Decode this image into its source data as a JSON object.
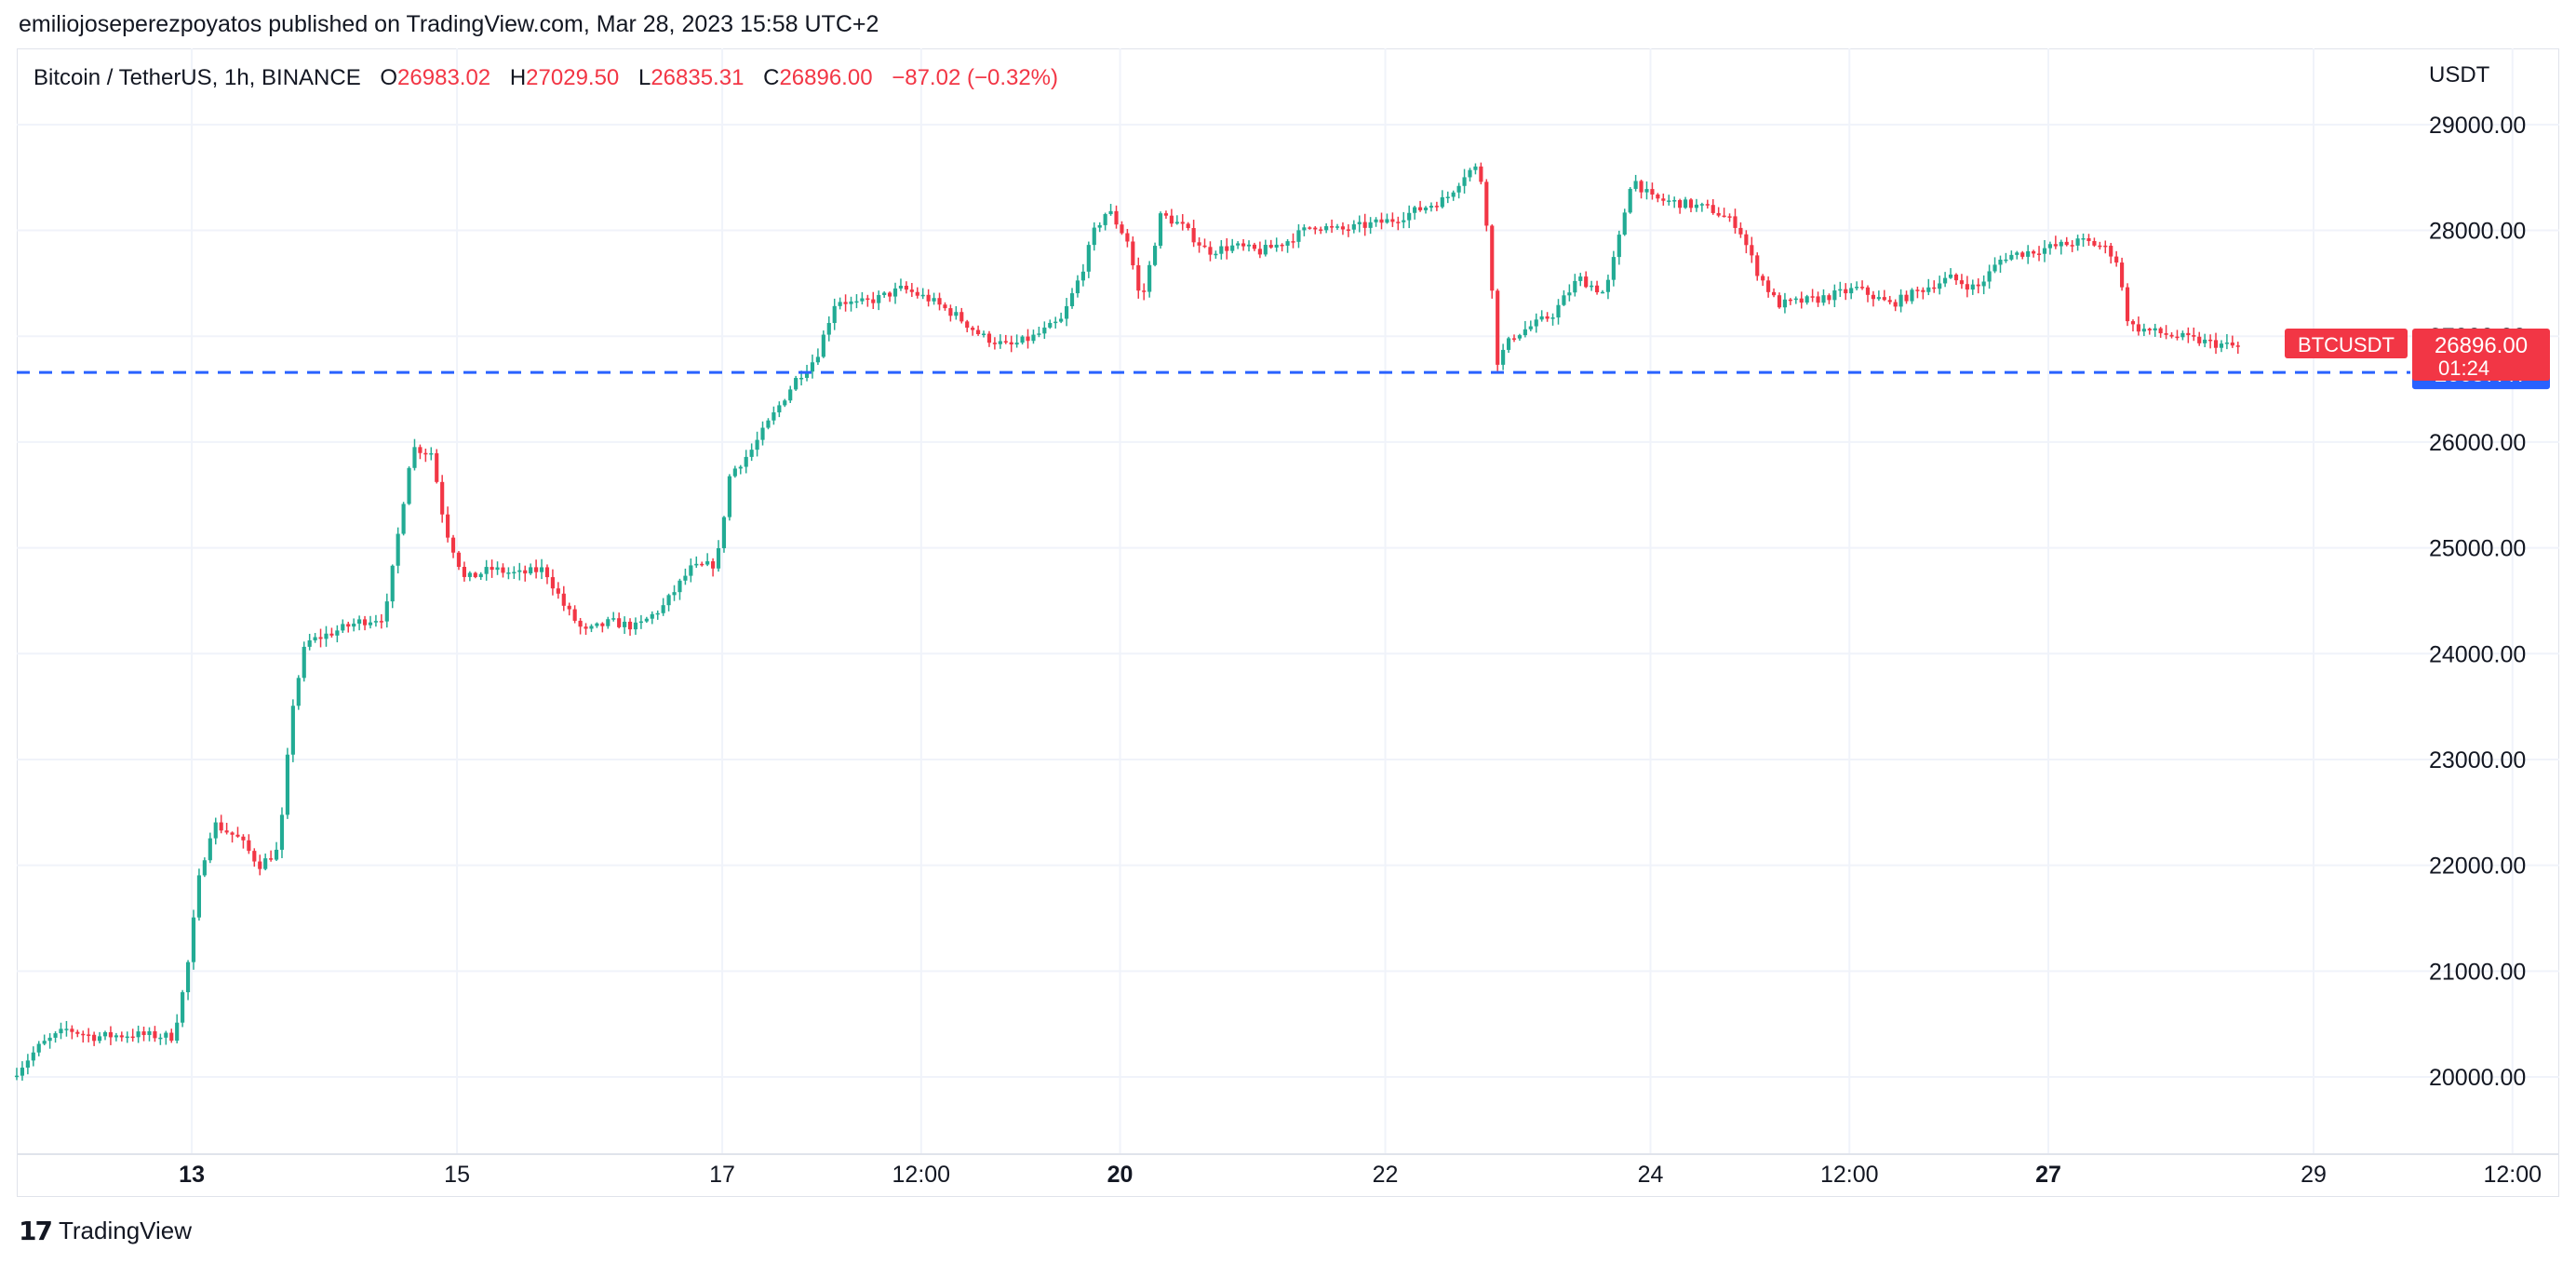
{
  "header": {
    "published_line": "emiliojoseperezpoyatos published on TradingView.com, Mar 28, 2023 15:58 UTC+2"
  },
  "legend": {
    "symbol": "Bitcoin / TetherUS, 1h, BINANCE",
    "open_label": "O",
    "open": "26983.02",
    "high_label": "H",
    "high": "27029.50",
    "low_label": "L",
    "low": "26835.31",
    "close_label": "C",
    "close": "26896.00",
    "change": "−87.02 (−0.32%)"
  },
  "footer": {
    "brand": "TradingView",
    "logo_icon": "tradingview-logo-icon"
  },
  "colors": {
    "up": "#22ab94",
    "down": "#f23645",
    "line": "#2962ff",
    "grid": "#f0f3fa"
  },
  "chart_data": {
    "type": "candlestick",
    "ylabel": "USDT",
    "ylim": [
      19270,
      29720
    ],
    "y_ticks": [
      20000,
      21000,
      22000,
      23000,
      24000,
      25000,
      26000,
      27000,
      28000,
      29000
    ],
    "y_tick_labels": [
      "20000.00",
      "21000.00",
      "22000.00",
      "23000.00",
      "24000.00",
      "25000.00",
      "26000.00",
      "27000.00",
      "28000.00",
      "29000.00"
    ],
    "xlim": [
      11.68,
      29.8
    ],
    "x_ticks": [
      {
        "x": 13,
        "label": "13",
        "bold": true
      },
      {
        "x": 15,
        "label": "15",
        "bold": false
      },
      {
        "x": 17,
        "label": "17",
        "bold": false
      },
      {
        "x": 18.5,
        "label": "12:00",
        "bold": false
      },
      {
        "x": 20,
        "label": "20",
        "bold": true
      },
      {
        "x": 22,
        "label": "22",
        "bold": false
      },
      {
        "x": 24,
        "label": "24",
        "bold": false
      },
      {
        "x": 25.5,
        "label": "12:00",
        "bold": false
      },
      {
        "x": 27,
        "label": "27",
        "bold": true
      },
      {
        "x": 29,
        "label": "29",
        "bold": false
      },
      {
        "x": 30.5,
        "label": "12:00",
        "bold": false
      }
    ],
    "price_line": {
      "value": 26657.47,
      "label": "26657.47",
      "style": "dashed"
    },
    "last_price": {
      "symbol": "BTCUSDT",
      "value": 26896.0,
      "label": "26896.00",
      "countdown": "01:24"
    },
    "path": [
      [
        11.68,
        20000
      ],
      [
        11.9,
        20300
      ],
      [
        12.1,
        20450
      ],
      [
        12.3,
        20380
      ],
      [
        12.6,
        20400
      ],
      [
        12.9,
        20380
      ],
      [
        13.0,
        20950
      ],
      [
        13.1,
        21900
      ],
      [
        13.2,
        22400
      ],
      [
        13.4,
        22250
      ],
      [
        13.55,
        22000
      ],
      [
        13.7,
        22150
      ],
      [
        13.8,
        23500
      ],
      [
        13.9,
        24100
      ],
      [
        14.1,
        24200
      ],
      [
        14.3,
        24300
      ],
      [
        14.5,
        24350
      ],
      [
        14.7,
        25950
      ],
      [
        14.85,
        25900
      ],
      [
        14.95,
        25200
      ],
      [
        15.1,
        24700
      ],
      [
        15.3,
        24800
      ],
      [
        15.5,
        24750
      ],
      [
        15.7,
        24800
      ],
      [
        15.85,
        24450
      ],
      [
        16.0,
        24200
      ],
      [
        16.2,
        24300
      ],
      [
        16.4,
        24250
      ],
      [
        16.6,
        24450
      ],
      [
        16.8,
        24800
      ],
      [
        17.0,
        24850
      ],
      [
        17.1,
        25700
      ],
      [
        17.25,
        25900
      ],
      [
        17.45,
        26300
      ],
      [
        17.6,
        26600
      ],
      [
        17.75,
        26800
      ],
      [
        17.9,
        27350
      ],
      [
        18.05,
        27300
      ],
      [
        18.2,
        27350
      ],
      [
        18.4,
        27450
      ],
      [
        18.6,
        27350
      ],
      [
        18.8,
        27200
      ],
      [
        19.0,
        27000
      ],
      [
        19.2,
        26900
      ],
      [
        19.4,
        27000
      ],
      [
        19.6,
        27150
      ],
      [
        19.75,
        27600
      ],
      [
        19.85,
        28000
      ],
      [
        19.95,
        28200
      ],
      [
        20.1,
        27900
      ],
      [
        20.2,
        27300
      ],
      [
        20.35,
        28150
      ],
      [
        20.5,
        28050
      ],
      [
        20.7,
        27800
      ],
      [
        20.9,
        27850
      ],
      [
        21.1,
        27800
      ],
      [
        21.3,
        27900
      ],
      [
        21.5,
        28050
      ],
      [
        21.7,
        28000
      ],
      [
        21.9,
        28050
      ],
      [
        22.1,
        28100
      ],
      [
        22.3,
        28200
      ],
      [
        22.5,
        28300
      ],
      [
        22.65,
        28550
      ],
      [
        22.75,
        28600
      ],
      [
        22.82,
        27950
      ],
      [
        22.88,
        26750
      ],
      [
        23.0,
        27000
      ],
      [
        23.3,
        27200
      ],
      [
        23.5,
        27550
      ],
      [
        23.7,
        27400
      ],
      [
        23.8,
        27900
      ],
      [
        23.9,
        28500
      ],
      [
        24.05,
        28300
      ],
      [
        24.3,
        28250
      ],
      [
        24.5,
        28200
      ],
      [
        24.7,
        28050
      ],
      [
        24.85,
        27600
      ],
      [
        25.0,
        27300
      ],
      [
        25.3,
        27350
      ],
      [
        25.6,
        27450
      ],
      [
        25.85,
        27300
      ],
      [
        26.1,
        27450
      ],
      [
        26.3,
        27550
      ],
      [
        26.5,
        27450
      ],
      [
        26.7,
        27750
      ],
      [
        26.9,
        27800
      ],
      [
        27.1,
        27850
      ],
      [
        27.3,
        27900
      ],
      [
        27.45,
        27850
      ],
      [
        27.55,
        27750
      ],
      [
        27.65,
        27100
      ],
      [
        27.8,
        27050
      ],
      [
        28.0,
        27000
      ],
      [
        28.2,
        26950
      ],
      [
        28.45,
        26900
      ]
    ]
  }
}
